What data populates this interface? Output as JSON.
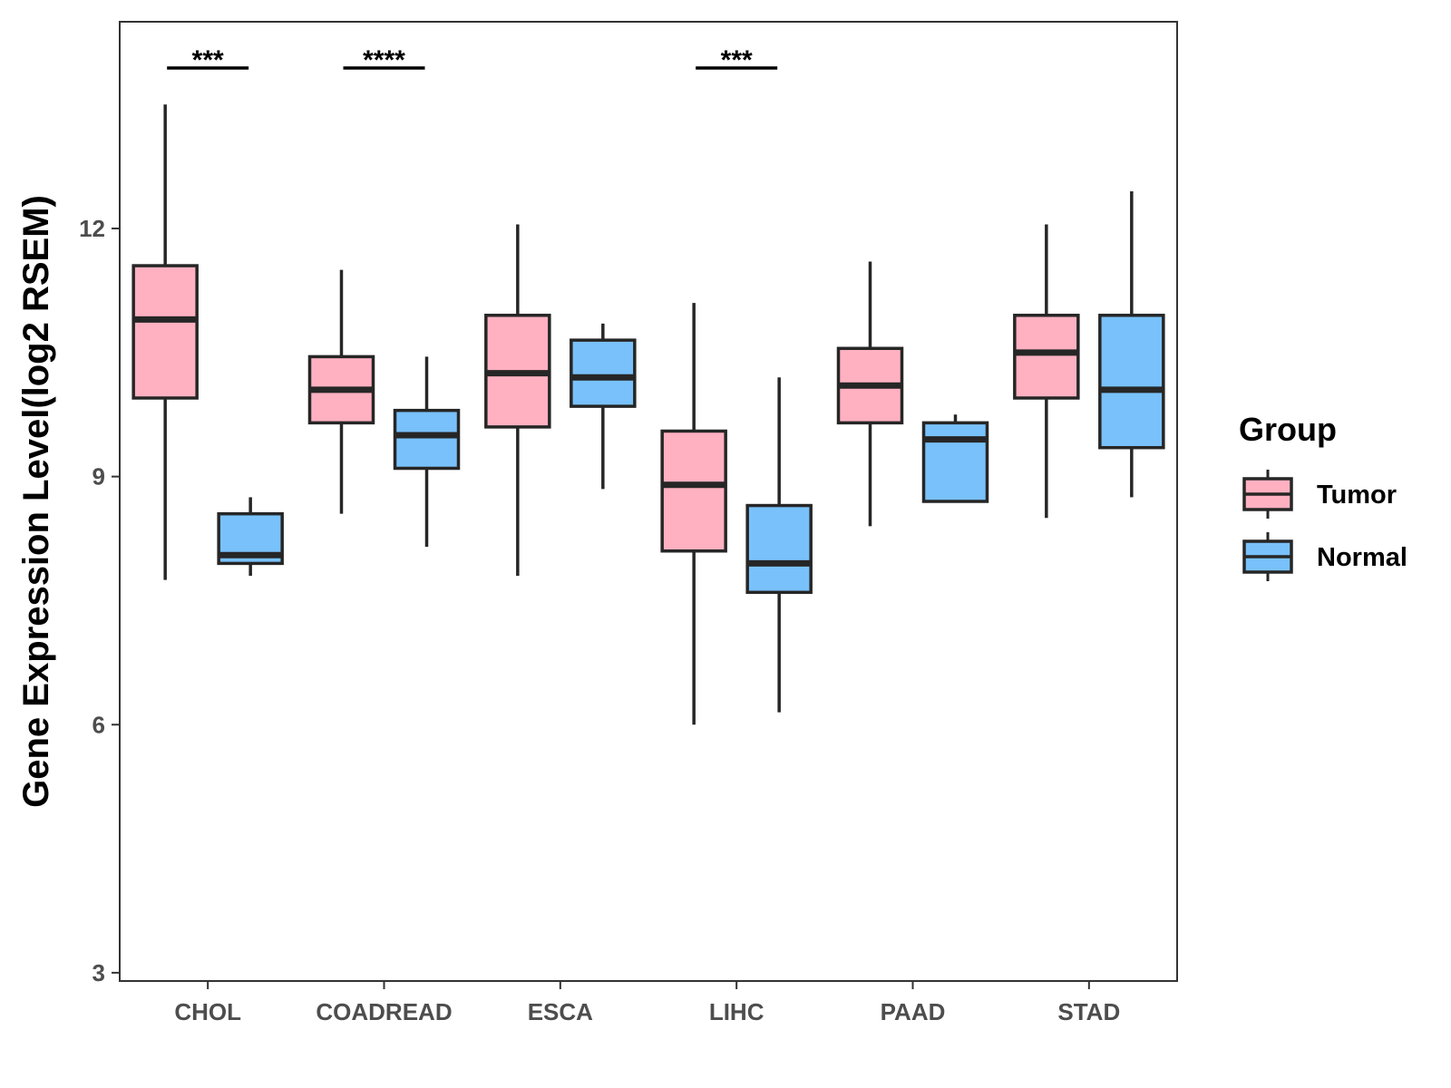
{
  "chart_data": {
    "type": "boxplot",
    "title": "",
    "xlabel": "",
    "ylabel": "Gene Expression Level(log2 RSEM)",
    "ylim": [
      2.9,
      14.5
    ],
    "yticks": [
      3,
      6,
      9,
      12
    ],
    "categories": [
      "CHOL",
      "COADREAD",
      "ESCA",
      "LIHC",
      "PAAD",
      "STAD"
    ],
    "legend": {
      "title": "Group",
      "position": "right",
      "entries": [
        "Tumor",
        "Normal"
      ]
    },
    "colors": {
      "Tumor": "#ffb1c1",
      "Normal": "#79c1fa",
      "stroke": "#262626",
      "frame": "#333333"
    },
    "series": [
      {
        "name": "Tumor",
        "boxes": [
          {
            "category": "CHOL",
            "min": 7.75,
            "q1": 9.95,
            "median": 10.9,
            "q3": 11.55,
            "max": 13.5
          },
          {
            "category": "COADREAD",
            "min": 8.55,
            "q1": 9.65,
            "median": 10.05,
            "q3": 10.45,
            "max": 11.5
          },
          {
            "category": "ESCA",
            "min": 7.8,
            "q1": 9.6,
            "median": 10.25,
            "q3": 10.95,
            "max": 12.05
          },
          {
            "category": "LIHC",
            "min": 6.0,
            "q1": 8.1,
            "median": 8.9,
            "q3": 9.55,
            "max": 11.1
          },
          {
            "category": "PAAD",
            "min": 8.4,
            "q1": 9.65,
            "median": 10.1,
            "q3": 10.55,
            "max": 11.6
          },
          {
            "category": "STAD",
            "min": 8.5,
            "q1": 9.95,
            "median": 10.5,
            "q3": 10.95,
            "max": 12.05
          }
        ]
      },
      {
        "name": "Normal",
        "boxes": [
          {
            "category": "CHOL",
            "min": 7.8,
            "q1": 7.95,
            "median": 8.05,
            "q3": 8.55,
            "max": 8.75
          },
          {
            "category": "COADREAD",
            "min": 8.15,
            "q1": 9.1,
            "median": 9.5,
            "q3": 9.8,
            "max": 10.45
          },
          {
            "category": "ESCA",
            "min": 8.85,
            "q1": 9.85,
            "median": 10.2,
            "q3": 10.65,
            "max": 10.85
          },
          {
            "category": "LIHC",
            "min": 6.15,
            "q1": 7.6,
            "median": 7.95,
            "q3": 8.65,
            "max": 10.2
          },
          {
            "category": "PAAD",
            "min": 8.7,
            "q1": 8.7,
            "median": 9.45,
            "q3": 9.65,
            "max": 9.75
          },
          {
            "category": "STAD",
            "min": 8.75,
            "q1": 9.35,
            "median": 10.05,
            "q3": 10.95,
            "max": 12.45
          }
        ]
      }
    ],
    "annotations": [
      {
        "category": "CHOL",
        "label": "***"
      },
      {
        "category": "COADREAD",
        "label": "****"
      },
      {
        "category": "LIHC",
        "label": "***"
      }
    ]
  }
}
